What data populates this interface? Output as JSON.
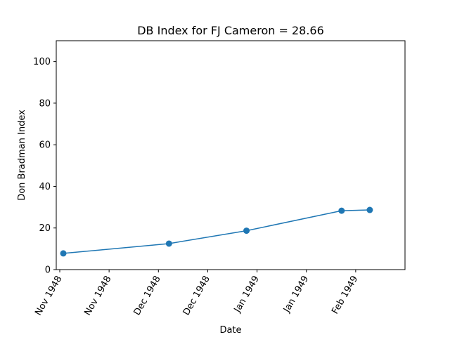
{
  "chart_data": {
    "type": "line",
    "title": "DB Index for FJ Cameron = 28.66",
    "xlabel": "Date",
    "ylabel": "Don Bradman Index",
    "ylim": [
      0,
      110
    ],
    "yticks": [
      0,
      20,
      40,
      60,
      80,
      100
    ],
    "xlim": [
      "1948-11-14",
      "1949-02-21"
    ],
    "xticks": [
      {
        "date": "1948-11-15",
        "label": "Nov 1948"
      },
      {
        "date": "1948-11-29",
        "label": "Nov 1948"
      },
      {
        "date": "1948-12-13",
        "label": "Dec 1948"
      },
      {
        "date": "1948-12-27",
        "label": "Dec 1948"
      },
      {
        "date": "1949-01-10",
        "label": "Jan 1949"
      },
      {
        "date": "1949-01-24",
        "label": "Jan 1949"
      },
      {
        "date": "1949-02-07",
        "label": "Feb 1949"
      }
    ],
    "x": [
      "1948-11-16",
      "1948-12-16",
      "1949-01-07",
      "1949-02-03",
      "1949-02-11"
    ],
    "y": [
      7.8,
      12.5,
      18.7,
      28.3,
      28.66
    ],
    "color": "#1f77b4",
    "grid": false,
    "legend": "none"
  }
}
